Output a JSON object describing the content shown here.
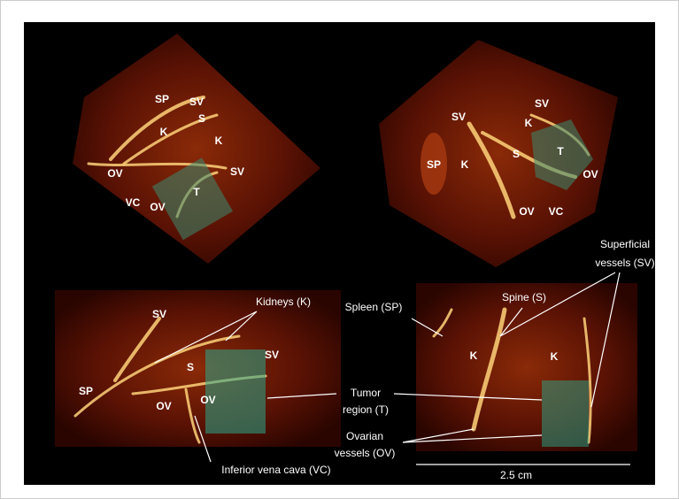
{
  "panels": [
    {
      "labels": [
        "SP",
        "SV",
        "K",
        "S",
        "K",
        "OV",
        "SV",
        "VC",
        "OV",
        "T"
      ]
    },
    {
      "labels": [
        "SV",
        "SV",
        "K",
        "SP",
        "K",
        "S",
        "T",
        "OV",
        "OV",
        "VC"
      ]
    },
    {
      "labels": [
        "SV",
        "SV",
        "SP",
        "S",
        "OV",
        "OV"
      ]
    },
    {
      "labels": [
        "K",
        "K"
      ]
    }
  ],
  "annotations": [
    {
      "lines": [
        "Kidneys (K)"
      ]
    },
    {
      "lines": [
        "Spleen (SP)"
      ]
    },
    {
      "lines": [
        "Spine (S)"
      ]
    },
    {
      "lines": [
        "Superficial",
        "vessels (SV)"
      ]
    },
    {
      "lines": [
        "Tumor",
        "region (T)"
      ]
    },
    {
      "lines": [
        "Ovarian",
        "vessels (OV)"
      ]
    },
    {
      "lines": [
        "Inferior vena cava (VC)"
      ]
    }
  ],
  "scale_bar": "2.5 cm"
}
